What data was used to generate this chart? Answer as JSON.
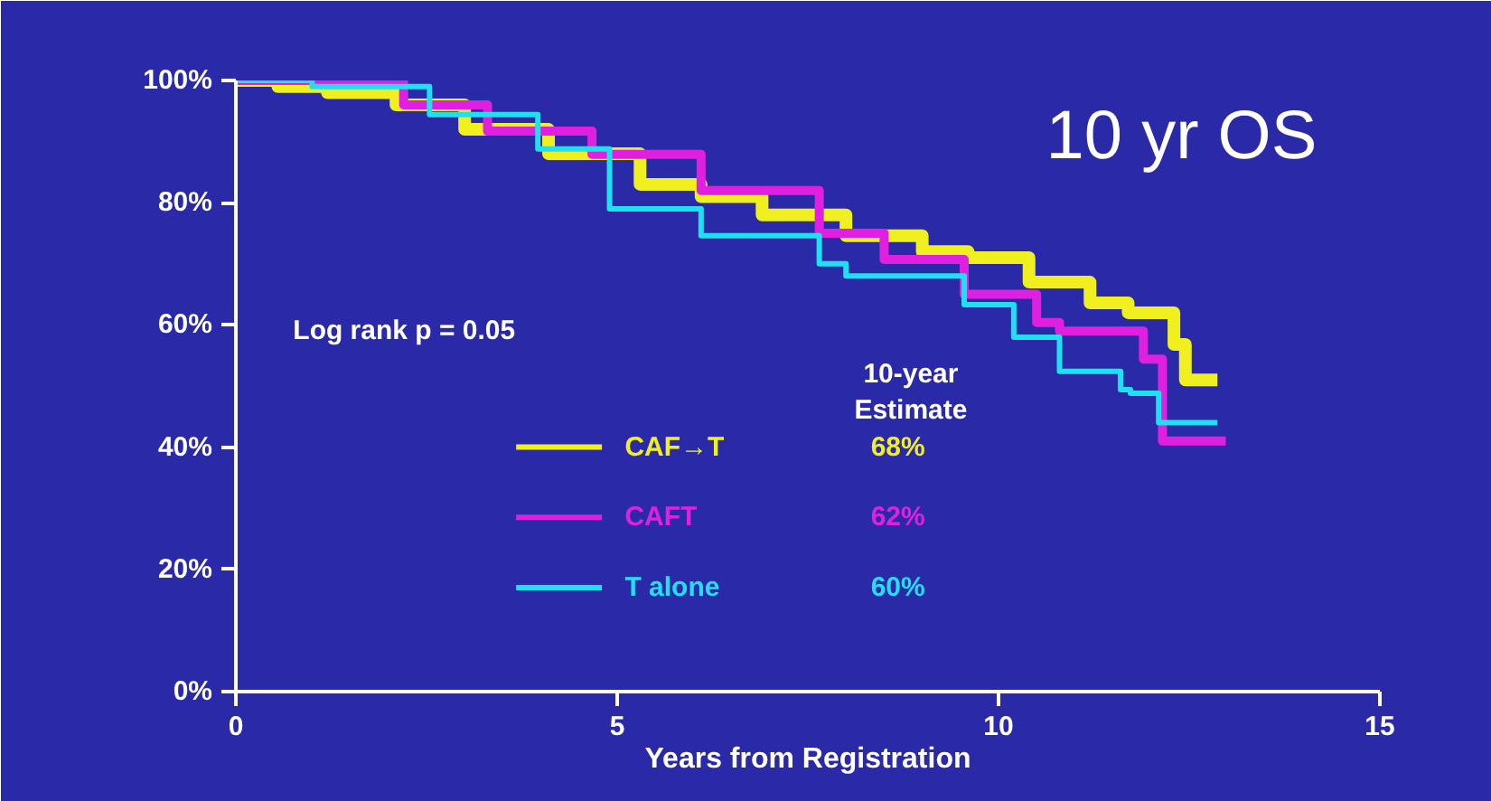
{
  "chart_data": {
    "type": "step",
    "title": "10 yr OS",
    "xlabel": "Years from Registration",
    "xlim": [
      0,
      15
    ],
    "ylim": [
      0,
      100
    ],
    "xticks": [
      0,
      5,
      10,
      15
    ],
    "yticks": [
      {
        "value": 0,
        "label": "0%"
      },
      {
        "value": 20,
        "label": "20%"
      },
      {
        "value": 40,
        "label": "40%"
      },
      {
        "value": 60,
        "label": "60%"
      },
      {
        "value": 80,
        "label": "80%"
      },
      {
        "value": 100,
        "label": "100%"
      }
    ],
    "grid": false,
    "legend": "bottom",
    "marker": "none",
    "line_style": "solid",
    "annotations": [
      "Log rank p = 0.05",
      "10-year Estimate",
      "68%",
      "62%",
      "60%"
    ],
    "series": [
      {
        "name": "CAF→T",
        "color": "#f0f020",
        "x": [
          0,
          0.55,
          1.2,
          2.1,
          3.0,
          4.1,
          5.3,
          6.1,
          6.9,
          8.0,
          9.0,
          9.6,
          10.4,
          11.2,
          11.7,
          12.3,
          12.45,
          12.87
        ],
        "values": [
          100,
          99,
          98,
          96,
          92,
          88,
          83,
          81,
          78,
          74.6,
          72,
          71,
          67,
          63.6,
          62,
          56.8,
          51,
          51
        ]
      },
      {
        "name": "CAFT",
        "color": "#e020e0",
        "x": [
          0,
          1.35,
          2.2,
          3.3,
          4.67,
          6.1,
          7.65,
          8.5,
          9.55,
          10.5,
          10.8,
          11.9,
          12.15,
          12.98
        ],
        "values": [
          100,
          99.7,
          96,
          91.7,
          87.9,
          82,
          75,
          70.7,
          65,
          60.4,
          59,
          54.4,
          41,
          41
        ]
      },
      {
        "name": "T alone",
        "color": "#20e0f0",
        "x": [
          0,
          1.0,
          2.54,
          3.96,
          4.9,
          6.1,
          7.65,
          8.0,
          9.55,
          10.2,
          10.8,
          11.6,
          11.73,
          12.1,
          12.87
        ],
        "values": [
          100,
          99,
          94.4,
          88.8,
          79,
          74.6,
          70,
          68,
          63.3,
          58,
          52.4,
          49.4,
          48.8,
          44,
          44
        ]
      }
    ]
  }
}
